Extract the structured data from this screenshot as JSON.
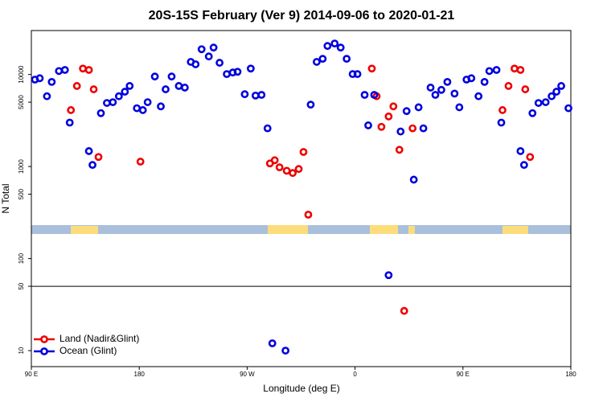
{
  "chart_data": {
    "type": "scatter",
    "title": "20S-15S February (Ver 9)   2014-09-06 to 2020-01-21",
    "x_label": "Longitude (deg E)",
    "y_label": "N Total",
    "xlim": [
      90,
      540
    ],
    "ylim": [
      6.7,
      30000
    ],
    "ylog": true,
    "xticks": [
      {
        "value": 90,
        "label": "90 E"
      },
      180,
      {
        "value": 270,
        "label": "90 W"
      },
      {
        "value": 360,
        "label": "0"
      },
      {
        "value": 450,
        "label": "90 E"
      },
      {
        "value": 540,
        "label": "180"
      }
    ],
    "yticks": [
      10,
      50,
      100,
      500,
      1000,
      5000,
      10000
    ],
    "hline": 50,
    "legend": "bottom-left",
    "series": [
      {
        "name": "Land (Nadir&Glint)",
        "color": "#ee0000",
        "x": [
          123,
          128,
          133,
          138,
          142,
          146,
          181,
          289,
          293,
          297,
          303,
          308,
          313,
          317,
          321,
          374,
          378,
          382,
          388,
          392,
          397,
          401,
          408,
          483,
          488,
          493,
          498,
          502,
          506
        ],
        "values": [
          4100,
          7500,
          11600,
          11200,
          6900,
          1270,
          1130,
          1080,
          1170,
          980,
          900,
          850,
          940,
          1440,
          300,
          11600,
          5800,
          2700,
          3500,
          4500,
          1520,
          27,
          2600,
          4100,
          7500,
          11600,
          11200,
          6900,
          1270
        ]
      },
      {
        "name": "Ocean (Glint)",
        "color": "#0000dd",
        "x": [
          93,
          97,
          103,
          107,
          113,
          118,
          122,
          138,
          141,
          148,
          153,
          158,
          163,
          168,
          172,
          178,
          183,
          187,
          193,
          198,
          202,
          207,
          213,
          218,
          223,
          227,
          232,
          238,
          242,
          247,
          253,
          258,
          262,
          268,
          273,
          277,
          282,
          287,
          291,
          302,
          323,
          328,
          333,
          337,
          343,
          348,
          353,
          358,
          362,
          368,
          371,
          376,
          388,
          398,
          403,
          409,
          413,
          417,
          423,
          427,
          432,
          437,
          443,
          447,
          453,
          457,
          463,
          468,
          472,
          478,
          482,
          498,
          501,
          508,
          513,
          519,
          524,
          528,
          532,
          538
        ],
        "values": [
          8800,
          9100,
          5800,
          8300,
          10900,
          11200,
          3000,
          1470,
          1040,
          3800,
          4900,
          5000,
          5800,
          6500,
          7500,
          4300,
          4100,
          5000,
          9500,
          4500,
          6900,
          9500,
          7500,
          7200,
          13700,
          12900,
          18800,
          15700,
          19600,
          13400,
          10100,
          10500,
          10700,
          6100,
          11600,
          5900,
          6000,
          2600,
          12,
          10,
          4700,
          13700,
          14800,
          20400,
          21700,
          19600,
          14800,
          10100,
          10100,
          6000,
          2800,
          6000,
          66,
          2400,
          4000,
          720,
          4400,
          2600,
          7200,
          6000,
          6800,
          8300,
          6200,
          4400,
          8800,
          9100,
          5800,
          8300,
          10900,
          11200,
          3000,
          1470,
          1040,
          3800,
          4900,
          5000,
          5800,
          6500,
          7500,
          4300
        ]
      }
    ]
  }
}
